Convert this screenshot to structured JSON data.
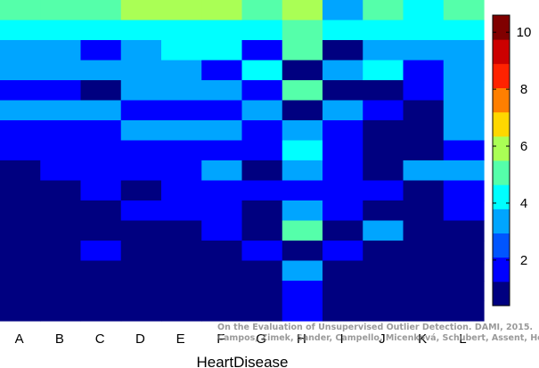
{
  "chart_data": {
    "type": "heatmap",
    "title": "",
    "xlabel": "HeartDisease",
    "ylabel": "",
    "categories": [
      "A",
      "B",
      "C",
      "D",
      "E",
      "F",
      "G",
      "H",
      "I",
      "J",
      "K",
      "L"
    ],
    "colorbar": {
      "range": [
        0.4,
        10.6
      ],
      "ticks": [
        2,
        4,
        6,
        8,
        10
      ],
      "colors": [
        "#000080",
        "#0000ff",
        "#0055ff",
        "#00a5ff",
        "#00ffff",
        "#55ffaa",
        "#aaff55",
        "#ffd700",
        "#ff7f00",
        "#ff2200",
        "#cc0000",
        "#800000"
      ]
    },
    "values": [
      [
        5,
        5,
        5,
        6,
        6,
        6,
        5,
        6,
        3,
        5,
        4,
        5
      ],
      [
        4,
        4,
        4,
        4,
        4,
        4,
        4,
        5,
        4,
        4,
        4,
        4
      ],
      [
        3,
        3,
        2,
        3,
        4,
        4,
        2,
        5,
        1,
        3,
        3,
        3
      ],
      [
        3,
        3,
        3,
        3,
        3,
        2,
        4,
        1,
        3,
        4,
        2,
        3
      ],
      [
        2,
        2,
        1,
        3,
        3,
        3,
        2,
        5,
        1,
        1,
        2,
        3
      ],
      [
        3,
        3,
        3,
        2,
        2,
        2,
        3,
        1,
        3,
        2,
        1,
        3
      ],
      [
        2,
        2,
        2,
        3,
        3,
        3,
        2,
        3,
        2,
        1,
        1,
        3
      ],
      [
        2,
        2,
        2,
        2,
        2,
        2,
        2,
        4,
        2,
        1,
        1,
        2
      ],
      [
        1,
        2,
        2,
        2,
        2,
        3,
        1,
        3,
        2,
        1,
        3,
        3
      ],
      [
        1,
        1,
        2,
        1,
        2,
        2,
        2,
        2,
        2,
        2,
        1,
        2
      ],
      [
        1,
        1,
        1,
        2,
        2,
        2,
        1,
        3,
        2,
        1,
        1,
        2
      ],
      [
        1,
        1,
        1,
        1,
        1,
        2,
        1,
        5,
        1,
        3,
        1,
        1
      ],
      [
        1,
        1,
        2,
        1,
        1,
        1,
        2,
        1,
        2,
        1,
        1,
        1
      ],
      [
        1,
        1,
        1,
        1,
        1,
        1,
        1,
        3,
        1,
        1,
        1,
        1
      ],
      [
        1,
        1,
        1,
        1,
        1,
        1,
        1,
        2,
        1,
        1,
        1,
        1
      ],
      [
        1,
        1,
        1,
        1,
        1,
        1,
        1,
        2,
        1,
        1,
        1,
        1
      ]
    ]
  },
  "credit": {
    "line1": "On the Evaluation of Unsupervised Outlier Detection. DAMI, 2015.",
    "line2": "Campos, Zimek, Sander, Campello, Micenková, Schubert, Assent, Houle"
  }
}
